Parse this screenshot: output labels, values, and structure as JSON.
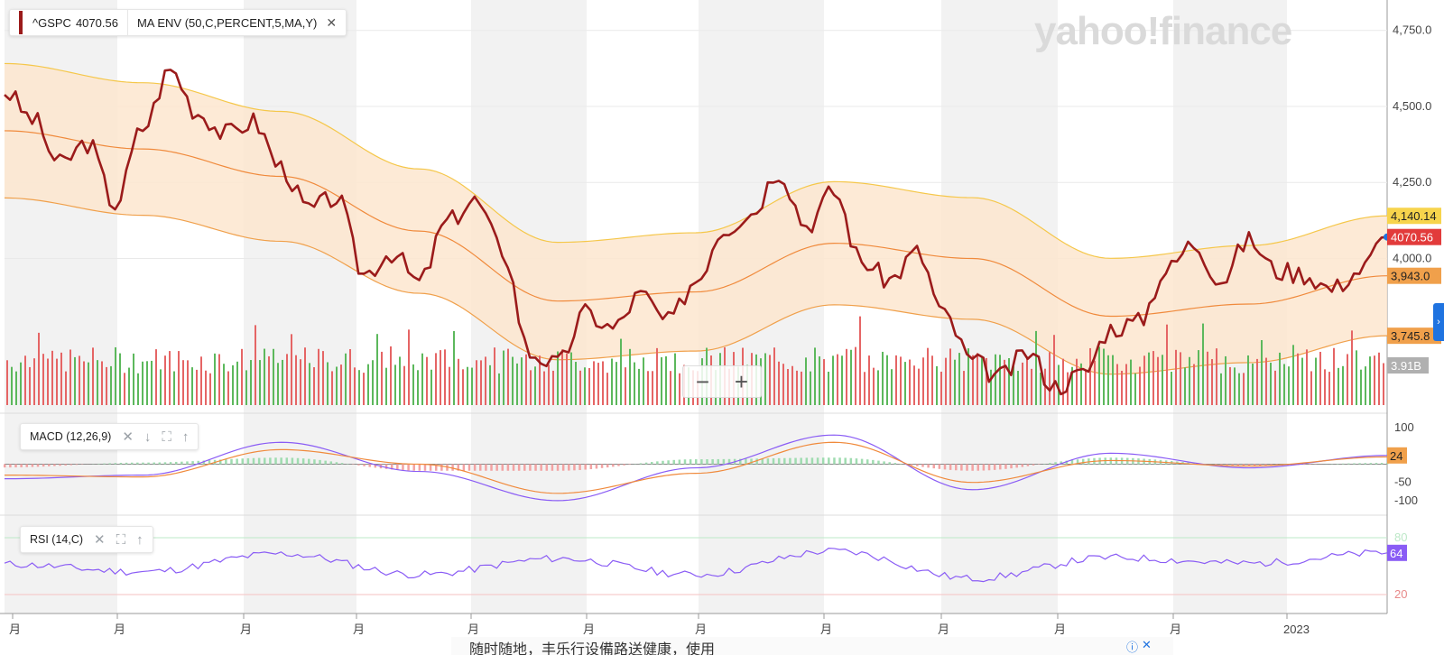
{
  "legend": {
    "symbol": "^GSPC",
    "symbol_price": "4070.56",
    "indicator": "MA ENV (50,C,PERCENT,5,MA,Y)",
    "close_glyph": "✕"
  },
  "watermark": "yahoo!finance",
  "zoom": {
    "minus": "−",
    "plus": "+"
  },
  "indicators": {
    "macd_label": "MACD (12,26,9)",
    "rsi_label": "RSI (14,C)"
  },
  "icons": {
    "close": "✕",
    "down": "↓",
    "expand": "⛶",
    "up": "↑"
  },
  "price_axis": {
    "ticks": [
      "4,750.0",
      "4,500.0",
      "4,250.0",
      "4,000.0"
    ]
  },
  "price_tags": [
    {
      "label": "4,140.14",
      "value": 4140.14,
      "color": "#f7d44c"
    },
    {
      "label": "4070.56",
      "value": 4070.56,
      "color": "#e23b3b"
    },
    {
      "label": "3,943.0",
      "value": 3943.0,
      "color": "#f0a04b"
    },
    {
      "label": "3,745.8",
      "value": 3745.8,
      "color": "#f0a04b"
    }
  ],
  "volume_tag": "3.91B",
  "macd_axis": {
    "ticks": [
      "100",
      "-50",
      "-100"
    ]
  },
  "macd_tag": "24",
  "rsi_axis": {
    "ticks": [
      "80",
      "20"
    ]
  },
  "rsi_tag": "64",
  "x_labels": [
    "月",
    "月",
    "月",
    "月",
    "月",
    "月",
    "月",
    "月",
    "月",
    "月",
    "月",
    "2023"
  ],
  "ad_text": "随时随地，丰乐行设備路送健康，使用",
  "colors": {
    "price_line": "#9b1b1b",
    "envelope_fill": "#fde6cf",
    "envelope_upper": "#f5c74a",
    "envelope_lower": "#f0a04b",
    "ma_line": "#f08a3c",
    "vol_up": "#5cb85c",
    "vol_down": "#e56565",
    "macd_line": "#8a5cf5",
    "signal_line": "#f08a3c",
    "rsi_line": "#8a5cf5"
  },
  "chart_data": {
    "type": "line",
    "title": "",
    "series": [
      {
        "name": "^GSPC",
        "x": [
          0,
          5,
          10,
          15,
          20,
          25,
          30,
          35,
          40,
          45,
          50,
          55,
          60,
          65,
          70,
          75,
          80,
          85,
          90,
          95,
          100,
          105,
          110,
          115,
          120,
          125,
          130,
          135,
          140,
          145,
          150,
          155,
          160,
          165,
          170,
          175,
          180,
          185,
          190,
          195,
          200,
          205,
          210,
          215,
          220,
          225,
          230,
          235,
          240,
          245,
          250
        ],
        "values": [
          4550,
          4460,
          4310,
          4380,
          4180,
          4430,
          4620,
          4480,
          4410,
          4450,
          4300,
          4160,
          4200,
          3950,
          4020,
          3920,
          4120,
          4190,
          4030,
          3690,
          3650,
          3820,
          3770,
          3880,
          3790,
          3930,
          4100,
          4150,
          4290,
          4110,
          4220,
          3990,
          3930,
          4020,
          3810,
          3660,
          3610,
          3690,
          3580,
          3620,
          3770,
          3790,
          3960,
          4050,
          3930,
          4060,
          3960,
          3950,
          3900,
          3960,
          4070.56
        ]
      },
      {
        "name": "MA ENV",
        "x": [
          0,
          25,
          50,
          75,
          100,
          125,
          150,
          175,
          200,
          225,
          250
        ],
        "values": [
          4420,
          4360,
          4270,
          4090,
          3860,
          3890,
          4050,
          4000,
          3810,
          3850,
          3943
        ]
      }
    ],
    "ylim": [
      3500,
      4850
    ],
    "macd": {
      "x": [
        0,
        25,
        50,
        75,
        100,
        125,
        150,
        175,
        200,
        225,
        250
      ],
      "values": [
        -40,
        -30,
        60,
        -20,
        -100,
        -10,
        80,
        -70,
        30,
        -10,
        24
      ],
      "signal": [
        -30,
        -35,
        40,
        0,
        -80,
        -25,
        60,
        -50,
        10,
        -5,
        20
      ],
      "ylim": [
        -130,
        130
      ]
    },
    "rsi": {
      "x": [
        0,
        25,
        50,
        75,
        100,
        125,
        150,
        175,
        200,
        225,
        250
      ],
      "values": [
        52,
        44,
        63,
        41,
        58,
        41,
        66,
        37,
        59,
        53,
        64
      ],
      "ylim": [
        0,
        100
      ]
    }
  }
}
